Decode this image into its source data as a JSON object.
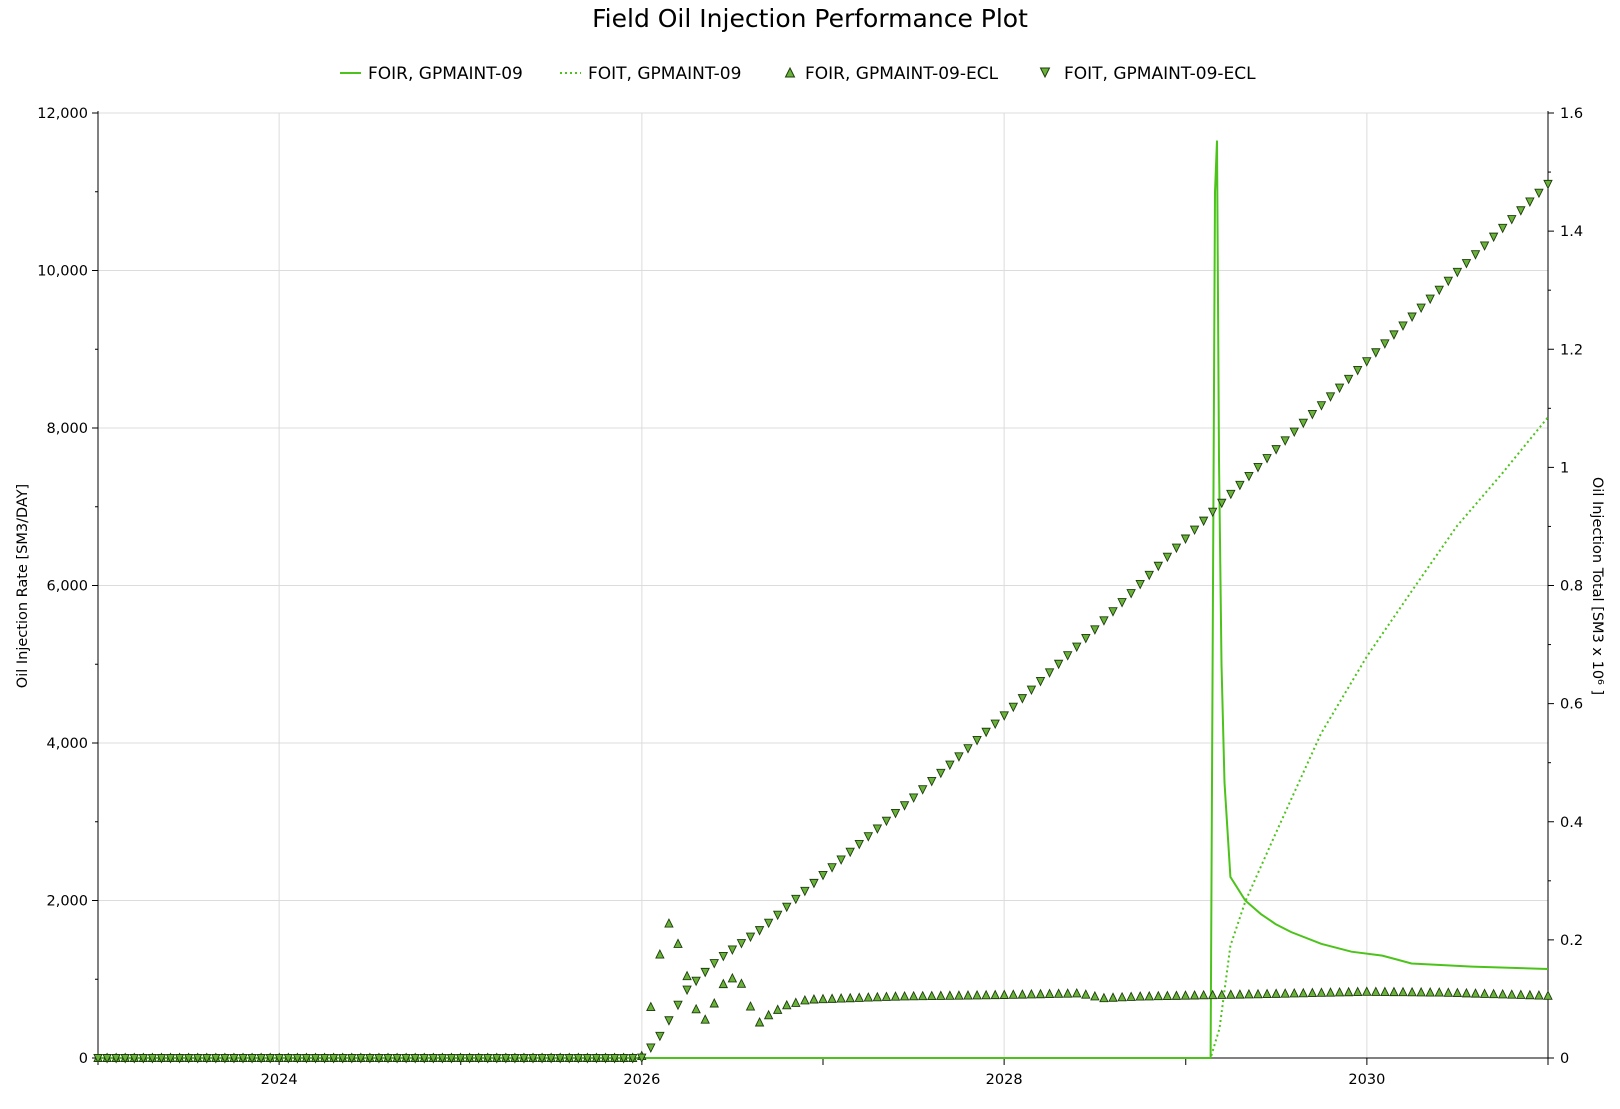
{
  "chart_data": {
    "type": "line",
    "title": "Field Oil Injection Performance Plot",
    "x_axis": {
      "type": "date",
      "range": [
        "2023-01-01",
        "2031-01-01"
      ],
      "major_ticks": [
        "2024",
        "2026",
        "2028",
        "2030"
      ],
      "grid": true
    },
    "y_left": {
      "label": "Oil Injection Rate [SM3/DAY]",
      "range": [
        0,
        12000
      ],
      "ticks": [
        "0",
        "2,000",
        "4,000",
        "6,000",
        "8,000",
        "10,000",
        "12,000"
      ]
    },
    "y_right": {
      "label": "Oil Injection Total [SM3 x 10⁶ ]",
      "range": [
        0,
        1.6
      ],
      "ticks": [
        "0",
        "0.2",
        "0.4",
        "0.6",
        "0.8",
        "1",
        "1.2",
        "1.4",
        "1.6"
      ]
    },
    "legend_position": "top-center",
    "series": [
      {
        "name": "FOIR, GPMAINT-09",
        "axis": "left",
        "style": "solid-line",
        "color": "#4CC31A",
        "points": [
          [
            "2023-01-01",
            0
          ],
          [
            "2029-02-20",
            0
          ],
          [
            "2029-03-01",
            11000
          ],
          [
            "2029-03-05",
            11650
          ],
          [
            "2029-03-09",
            7600
          ],
          [
            "2029-03-14",
            5000
          ],
          [
            "2029-03-20",
            3500
          ],
          [
            "2029-04-01",
            2300
          ],
          [
            "2029-05-01",
            2000
          ],
          [
            "2029-06-01",
            1830
          ],
          [
            "2029-07-01",
            1700
          ],
          [
            "2029-08-01",
            1600
          ],
          [
            "2029-10-01",
            1450
          ],
          [
            "2029-12-01",
            1350
          ],
          [
            "2030-02-01",
            1300
          ],
          [
            "2030-04-01",
            1200
          ],
          [
            "2030-08-01",
            1160
          ],
          [
            "2031-01-01",
            1130
          ]
        ]
      },
      {
        "name": "FOIT, GPMAINT-09",
        "axis": "right",
        "style": "dotted-line",
        "color": "#4CC31A",
        "points": [
          [
            "2023-01-01",
            0
          ],
          [
            "2029-02-20",
            0
          ],
          [
            "2029-03-10",
            0.05
          ],
          [
            "2029-04-01",
            0.19
          ],
          [
            "2029-05-01",
            0.265
          ],
          [
            "2029-07-01",
            0.38
          ],
          [
            "2029-10-01",
            0.55
          ],
          [
            "2030-01-01",
            0.68
          ],
          [
            "2030-04-01",
            0.79
          ],
          [
            "2030-07-01",
            0.9
          ],
          [
            "2030-10-01",
            0.99
          ],
          [
            "2031-01-01",
            1.085
          ]
        ]
      },
      {
        "name": "FOIR, GPMAINT-09-ECL",
        "axis": "left",
        "style": "up-triangle-markers",
        "color": "#6AB23A",
        "points": [
          [
            "2023-01-01",
            0
          ],
          [
            "2025-12-31",
            0
          ],
          [
            "2026-01-15",
            500
          ],
          [
            "2026-02-10",
            1450
          ],
          [
            "2026-02-27",
            1750
          ],
          [
            "2026-03-20",
            1350
          ],
          [
            "2026-04-10",
            850
          ],
          [
            "2026-04-30",
            400
          ],
          [
            "2026-05-20",
            600
          ],
          [
            "2026-06-15",
            950
          ],
          [
            "2026-07-05",
            1020
          ],
          [
            "2026-07-25",
            920
          ],
          [
            "2026-08-20",
            420
          ],
          [
            "2026-09-15",
            550
          ],
          [
            "2026-10-15",
            660
          ],
          [
            "2026-12-01",
            740
          ],
          [
            "2027-06-01",
            780
          ],
          [
            "2028-01-01",
            800
          ],
          [
            "2028-06-01",
            820
          ],
          [
            "2028-07-20",
            760
          ],
          [
            "2028-10-01",
            780
          ],
          [
            "2029-06-01",
            810
          ],
          [
            "2030-01-01",
            840
          ],
          [
            "2030-06-01",
            830
          ],
          [
            "2031-01-01",
            790
          ]
        ]
      },
      {
        "name": "FOIT, GPMAINT-09-ECL",
        "axis": "right",
        "style": "down-triangle-markers",
        "color": "#6AB23A",
        "points": [
          [
            "2023-01-01",
            0
          ],
          [
            "2025-12-31",
            0
          ],
          [
            "2026-02-01",
            0.03
          ],
          [
            "2026-04-01",
            0.115
          ],
          [
            "2026-06-01",
            0.165
          ],
          [
            "2026-09-01",
            0.22
          ],
          [
            "2027-01-01",
            0.31
          ],
          [
            "2027-07-01",
            0.44
          ],
          [
            "2028-01-01",
            0.58
          ],
          [
            "2028-07-01",
            0.725
          ],
          [
            "2029-01-01",
            0.88
          ],
          [
            "2029-07-01",
            1.03
          ],
          [
            "2030-01-01",
            1.18
          ],
          [
            "2030-07-01",
            1.33
          ],
          [
            "2031-01-01",
            1.48
          ]
        ]
      }
    ]
  }
}
